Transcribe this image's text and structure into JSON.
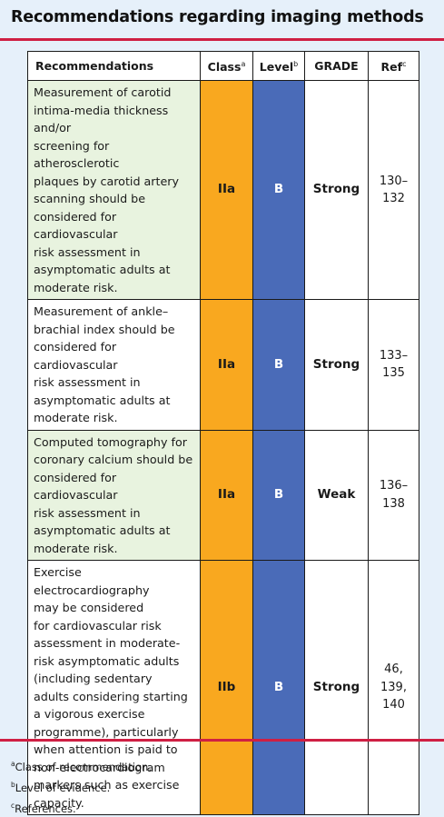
{
  "title": "Recommendations regarding imaging methods",
  "table": {
    "headers": {
      "recommendations": "Recommendations",
      "class": "Class",
      "class_sup": "a",
      "level": "Level",
      "level_sup": "b",
      "grade": "GRADE",
      "ref": "Ref",
      "ref_sup": "c"
    },
    "rows": [
      {
        "text": "Measurement of carotid\nintima-media thickness and/or\nscreening for atherosclerotic\nplaques by carotid artery\nscanning should be\nconsidered for cardiovascular\nrisk assessment in\nasymptomatic adults at\nmoderate risk.",
        "class": "IIa",
        "level": "B",
        "grade": "Strong",
        "ref": "130–\n132"
      },
      {
        "text": "Measurement of ankle–\nbrachial index should be\nconsidered for cardiovascular\nrisk assessment in\nasymptomatic adults at\nmoderate risk.",
        "class": "IIa",
        "level": "B",
        "grade": "Strong",
        "ref": "133–\n135"
      },
      {
        "text": "Computed tomography for\ncoronary calcium should be\nconsidered for cardiovascular\nrisk assessment in\nasymptomatic adults at\nmoderate risk.",
        "class": "IIa",
        "level": "B",
        "grade": "Weak",
        "ref": "136–\n138"
      },
      {
        "text": "Exercise electrocardiography\nmay be considered\nfor cardiovascular risk\nassessment in moderate-\nrisk asymptomatic adults\n(including sedentary\nadults considering starting\na vigorous exercise\nprogramme), particularly\nwhen attention is paid to\nnon-electrocardiogram\nmarkers such as exercise\ncapacity.",
        "class": "IIb",
        "level": "B",
        "grade": "Strong",
        "ref": "46,\n139,\n140"
      }
    ]
  },
  "footnotes": [
    {
      "mark": "a",
      "text": "Class of recommendation."
    },
    {
      "mark": "b",
      "text": "Level of evidence."
    },
    {
      "mark": "c",
      "text": "References."
    }
  ],
  "colors": {
    "rule": "#cf1f43",
    "class_fill": "#f9a81f",
    "level_fill": "#4a6bb8",
    "highlight_row": "#e8f3df",
    "panel_background": "#e6f0fa"
  }
}
